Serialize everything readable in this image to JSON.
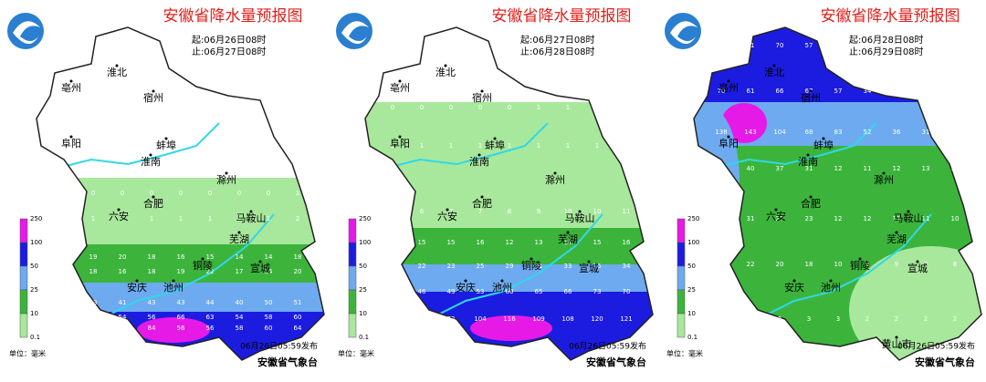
{
  "legend": {
    "levels": [
      "250",
      "100",
      "50",
      "25",
      "10",
      "0.1"
    ],
    "unit": "单位：毫米"
  },
  "org": "安徽省气象台",
  "panels": [
    {
      "title": "安徽省降水量预报图",
      "start": "起:06月26日08时",
      "end": "止:06月27日08时",
      "publish": "06月26日05:59发布",
      "cities": [
        "淮北",
        "亳州",
        "宿州",
        "阜阳",
        "蚌埠",
        "淮南",
        "滁州",
        "六安",
        "合肥",
        "马鞍山",
        "芜湖",
        "铜陵",
        "宣城",
        "安庆",
        "池州"
      ],
      "grid_rows": [
        [
          0,
          0,
          0,
          0,
          0,
          0,
          0,
          0,
          1
        ],
        [
          1,
          1,
          1,
          1,
          1,
          1,
          1,
          1,
          2
        ],
        [
          18,
          19,
          20,
          18,
          16,
          15,
          14,
          14,
          18
        ],
        [
          20,
          18,
          16,
          18,
          19,
          22,
          17,
          14,
          20
        ],
        [
          28,
          33,
          41,
          43,
          43,
          44,
          40,
          50,
          51
        ],
        [
          42,
          52,
          54,
          56,
          66,
          63,
          54,
          58,
          60
        ],
        [
          131,
          137,
          139,
          84,
          56,
          56,
          58,
          60,
          64
        ]
      ]
    },
    {
      "title": "安徽省降水量预报图",
      "start": "起:06月27日08时",
      "end": "止:06月28日08时",
      "publish": "06月26日05:59发布",
      "cities": [
        "淮北",
        "亳州",
        "宿州",
        "阜阳",
        "蚌埠",
        "淮南",
        "滁州",
        "六安",
        "合肥",
        "马鞍山",
        "芜湖",
        "铜陵",
        "宣城",
        "安庆",
        "池州"
      ],
      "grid_rows": [
        [
          0,
          0,
          0,
          0,
          0,
          1,
          1,
          1,
          1
        ],
        [
          1,
          1,
          1,
          1,
          1,
          1,
          1,
          1,
          1
        ],
        [
          6,
          6,
          7,
          7,
          8,
          9,
          10,
          10,
          11
        ],
        [
          14,
          15,
          15,
          16,
          12,
          13,
          14,
          15,
          16
        ],
        [
          20,
          22,
          23,
          25,
          29,
          31,
          33,
          35,
          34
        ],
        [
          40,
          46,
          49,
          53,
          60,
          65,
          66,
          73,
          70
        ],
        [
          73,
          74,
          72,
          104,
          116,
          109,
          108,
          120,
          121
        ]
      ]
    },
    {
      "title": "安徽省降水量预报图",
      "start": "起:06月28日08时",
      "end": "止:06月29日08时",
      "publish": "06月26日05:59发布",
      "cities": [
        "淮北",
        "亳州",
        "宿州",
        "阜阳",
        "蚌埠",
        "淮南",
        "滁州",
        "六安",
        "合肥",
        "马鞍山",
        "芜湖",
        "铜陵",
        "宣城",
        "安庆",
        "池州",
        "黄山市"
      ],
      "grid_rows": [
        [
          65,
          71,
          70,
          57,
          40,
          38,
          36,
          34,
          29
        ],
        [
          70,
          61,
          66,
          67,
          57,
          34,
          38,
          36,
          29
        ],
        [
          138,
          143,
          104,
          68,
          83,
          52,
          36,
          31,
          27
        ],
        [
          44,
          40,
          37,
          31,
          12,
          11,
          12,
          13,
          11
        ],
        [
          35,
          31,
          27,
          23,
          12,
          12,
          11,
          11,
          10
        ],
        [
          26,
          22,
          20,
          18,
          10,
          9,
          9,
          8,
          8
        ],
        [
          3,
          3,
          2,
          3,
          3,
          2,
          2,
          2,
          2
        ]
      ]
    }
  ]
}
